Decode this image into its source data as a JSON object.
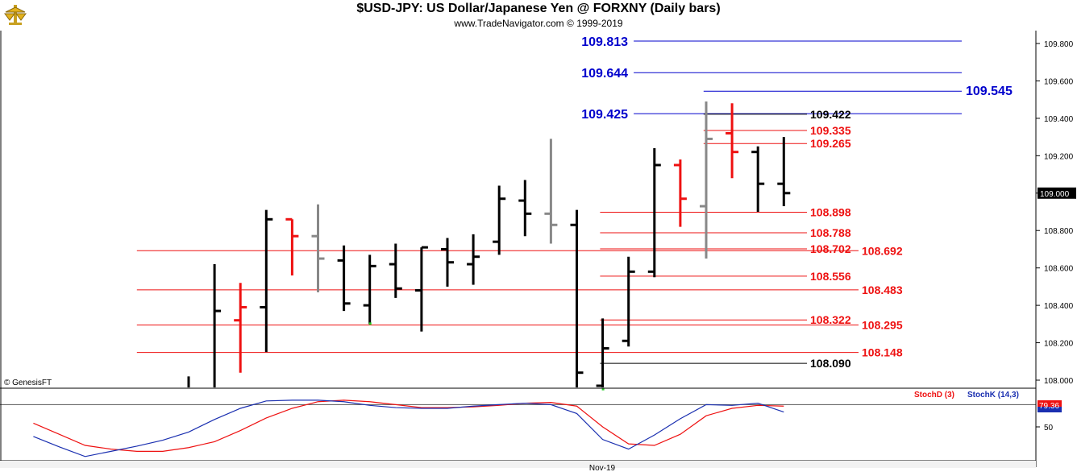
{
  "header": {
    "title": "$USD-JPY:  US Dollar/Japanese Yen @ FORXNY  (Daily bars)",
    "subtitle": "www.TradeNavigator.com © 1999-2019"
  },
  "logo_icon": "trade-navigator-logo",
  "copyright": "© GenesisFT",
  "x_axis": {
    "label": "Nov-19"
  },
  "chart_data": [
    {
      "type": "ohlc",
      "ylim": [
        107.95,
        109.85
      ],
      "y_ticks": [
        "108.000",
        "108.200",
        "108.400",
        "108.600",
        "108.800",
        "109.000",
        "109.200",
        "109.400",
        "109.600",
        "109.800"
      ],
      "last_price": "109.000",
      "colors": {
        "black": "#000000",
        "red": "#ee1111",
        "gray": "#888888",
        "blue": "#0000cc"
      },
      "bars": [
        {
          "o": null,
          "h": 108.02,
          "l": 107.95,
          "c": null,
          "color": "black"
        },
        {
          "o": null,
          "h": 108.62,
          "l": 107.95,
          "c": 108.37,
          "color": "black"
        },
        {
          "o": 108.32,
          "h": 108.52,
          "l": 108.04,
          "c": 108.39,
          "color": "red"
        },
        {
          "o": 108.39,
          "h": 108.91,
          "l": 108.15,
          "c": 108.86,
          "color": "black"
        },
        {
          "o": 108.86,
          "h": 108.86,
          "l": 108.56,
          "c": 108.77,
          "color": "red"
        },
        {
          "o": 108.77,
          "h": 108.94,
          "l": 108.47,
          "c": 108.65,
          "color": "gray"
        },
        {
          "o": 108.64,
          "h": 108.72,
          "l": 108.37,
          "c": 108.41,
          "color": "black"
        },
        {
          "o": 108.4,
          "h": 108.67,
          "l": 108.3,
          "c": 108.61,
          "color": "black"
        },
        {
          "o": 108.62,
          "h": 108.73,
          "l": 108.44,
          "c": 108.49,
          "color": "black"
        },
        {
          "o": 108.48,
          "h": 108.71,
          "l": 108.26,
          "c": 108.71,
          "color": "black"
        },
        {
          "o": 108.7,
          "h": 108.76,
          "l": 108.5,
          "c": 108.63,
          "color": "black"
        },
        {
          "o": 108.62,
          "h": 108.78,
          "l": 108.51,
          "c": 108.66,
          "color": "black"
        },
        {
          "o": 108.74,
          "h": 109.04,
          "l": 108.67,
          "c": 108.97,
          "color": "black"
        },
        {
          "o": 108.96,
          "h": 109.07,
          "l": 108.77,
          "c": 108.89,
          "color": "black"
        },
        {
          "o": 108.89,
          "h": 109.29,
          "l": 108.73,
          "c": 108.83,
          "color": "gray"
        },
        {
          "o": 108.83,
          "h": 108.91,
          "l": 107.95,
          "c": 108.04,
          "color": "black"
        },
        {
          "o": 107.97,
          "h": 108.33,
          "l": 107.95,
          "c": 108.17,
          "color": "black"
        },
        {
          "o": 108.21,
          "h": 108.66,
          "l": 108.18,
          "c": 108.58,
          "color": "black"
        },
        {
          "o": 108.58,
          "h": 109.24,
          "l": 108.55,
          "c": 109.15,
          "color": "black"
        },
        {
          "o": 109.15,
          "h": 109.18,
          "l": 108.82,
          "c": 108.97,
          "color": "red"
        },
        {
          "o": 108.93,
          "h": 109.49,
          "l": 108.65,
          "c": 109.29,
          "color": "gray"
        },
        {
          "o": 109.32,
          "h": 109.48,
          "l": 109.08,
          "c": 109.22,
          "color": "red"
        },
        {
          "o": 109.22,
          "h": 109.25,
          "l": 108.9,
          "c": 109.05,
          "color": "black"
        },
        {
          "o": 109.05,
          "h": 109.3,
          "l": 108.93,
          "c": 109.0,
          "color": "black"
        }
      ],
      "green_ticks": [
        7,
        16
      ],
      "levels": [
        {
          "value": "109.813",
          "color": "blue",
          "x_start_bar": 17.2,
          "label_side": "left"
        },
        {
          "value": "109.644",
          "color": "blue",
          "x_start_bar": 17.2,
          "label_side": "left"
        },
        {
          "value": "109.545",
          "color": "blue",
          "x_start_bar": 19.9,
          "label_side": "far"
        },
        {
          "value": "109.425",
          "color": "blue",
          "x_start_bar": 17.2,
          "label_side": "left"
        },
        {
          "value": "109.422",
          "color": "black",
          "x_start_bar": 19.9,
          "label_side": "right"
        },
        {
          "value": "109.335",
          "color": "red",
          "x_start_bar": 19.9,
          "label_side": "right"
        },
        {
          "value": "109.265",
          "color": "red",
          "x_start_bar": 19.9,
          "label_side": "right"
        },
        {
          "value": "108.898",
          "color": "red",
          "x_start_bar": 15.9,
          "label_side": "right"
        },
        {
          "value": "108.788",
          "color": "red",
          "x_start_bar": 15.9,
          "label_side": "right"
        },
        {
          "value": "108.702",
          "color": "red",
          "x_start_bar": 15.9,
          "label_side": "right"
        },
        {
          "value": "108.692",
          "color": "red",
          "x_start_bar": -2,
          "label_side": "far"
        },
        {
          "value": "108.556",
          "color": "red",
          "x_start_bar": 15.9,
          "label_side": "right"
        },
        {
          "value": "108.483",
          "color": "red",
          "x_start_bar": -2,
          "label_side": "far"
        },
        {
          "value": "108.322",
          "color": "red",
          "x_start_bar": 15.9,
          "label_side": "right"
        },
        {
          "value": "108.295",
          "color": "red",
          "x_start_bar": -2,
          "label_side": "far"
        },
        {
          "value": "108.148",
          "color": "red",
          "x_start_bar": -2,
          "label_side": "far"
        },
        {
          "value": "108.090",
          "color": "black",
          "x_start_bar": 15.9,
          "label_side": "right"
        }
      ]
    },
    {
      "type": "line",
      "ylim": [
        0,
        100
      ],
      "y_ticks": [
        "50"
      ],
      "reference_level": 80,
      "legend": [
        {
          "name": "StochD (3)",
          "color": "#ee1111"
        },
        {
          "name": "StochK (14,3)",
          "color": "#1a2fb0"
        }
      ],
      "last_value": "79.36",
      "series": [
        {
          "name": "StochD (3)",
          "color": "#ee1111",
          "x": [
            -6,
            -5,
            -4,
            -3,
            -2,
            -1,
            0,
            1,
            2,
            3,
            4,
            5,
            6,
            7,
            8,
            9,
            10,
            11,
            12,
            13,
            14,
            15,
            16,
            17,
            18,
            19,
            20,
            21,
            22,
            23
          ],
          "values": [
            55,
            40,
            25,
            20,
            17,
            17,
            22,
            30,
            45,
            62,
            75,
            84,
            86,
            84,
            80,
            76,
            76,
            77,
            79,
            82,
            83,
            78,
            50,
            27,
            25,
            40,
            65,
            75,
            79,
            78
          ]
        },
        {
          "name": "StochK (14,3)",
          "color": "#1a2fb0",
          "x": [
            -6,
            -5,
            -4,
            -3,
            -2,
            -1,
            0,
            1,
            2,
            3,
            4,
            5,
            6,
            7,
            8,
            9,
            10,
            11,
            12,
            13,
            14,
            15,
            16,
            17,
            18,
            19,
            20,
            21,
            22,
            23
          ],
          "values": [
            37,
            23,
            10,
            17,
            24,
            32,
            43,
            60,
            75,
            85,
            86,
            86,
            84,
            79,
            76,
            75,
            75,
            78,
            80,
            82,
            80,
            68,
            33,
            20,
            39,
            61,
            80,
            79,
            82,
            70
          ]
        }
      ]
    }
  ]
}
